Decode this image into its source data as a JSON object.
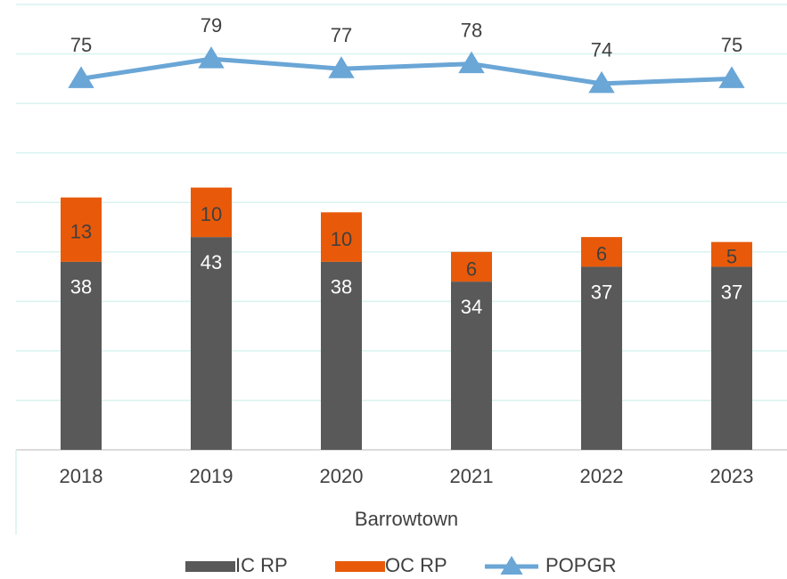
{
  "chart_data": {
    "type": "bar_line",
    "x_label": "Barrowtown",
    "categories": [
      "2018",
      "2019",
      "2020",
      "2021",
      "2022",
      "2023"
    ],
    "series": [
      {
        "name": "IC RP",
        "type": "bar",
        "color": "#595959",
        "values": [
          38,
          43,
          38,
          34,
          37,
          37
        ]
      },
      {
        "name": "OC RP",
        "type": "bar",
        "color": "#e85a0a",
        "values": [
          13,
          10,
          10,
          6,
          6,
          5
        ]
      },
      {
        "name": "POPGR",
        "type": "line",
        "color": "#6aa6d6",
        "values": [
          75,
          79,
          77,
          78,
          74,
          75
        ]
      }
    ],
    "stacked": true,
    "ylim": [
      0,
      90
    ],
    "yticks": [
      0,
      10,
      20,
      30,
      40,
      50,
      60,
      70,
      80,
      90
    ],
    "grid": true
  }
}
